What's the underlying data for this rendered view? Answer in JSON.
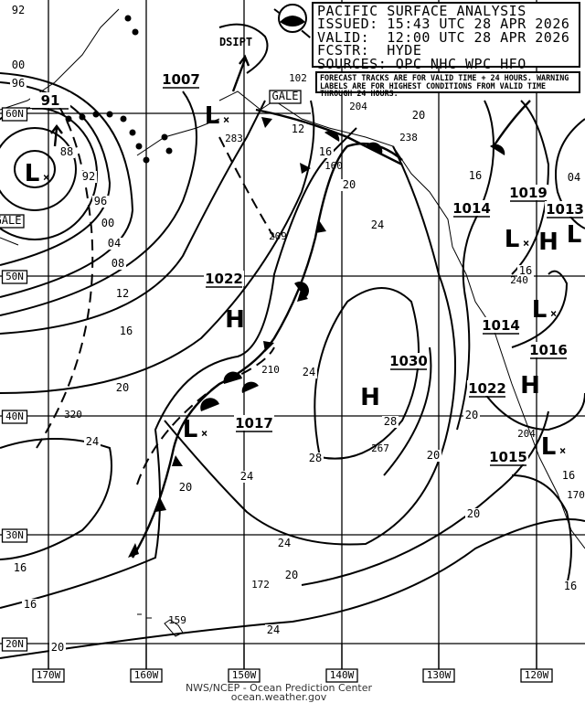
{
  "header": {
    "title": "PACIFIC SURFACE ANALYSIS",
    "issued": "ISSUED: 15:43 UTC 28 APR 2026",
    "valid": "VALID:  12:00 UTC 28 APR 2026",
    "forecaster": "FCSTR:  HYDE",
    "sources": "SOURCES: OPC NHC WPC HFO"
  },
  "note": "FORECAST TRACKS ARE FOR VALID TIME + 24 HOURS. WARNING LABELS ARE FOR HIGHEST CONDITIONS FROM VALID TIME THROUGH 24 HOURS.",
  "credit": {
    "line1": "NWS/NCEP - Ocean Prediction Center",
    "line2": "ocean.weather.gov"
  },
  "logo": "NOAA",
  "longitude_labels": [
    "170W",
    "160W",
    "150W",
    "140W",
    "130W",
    "120W"
  ],
  "latitude_labels": [
    "20N",
    "30N",
    "40N",
    "50N",
    "60N"
  ],
  "pressure_systems": [
    {
      "type": "L",
      "pressure": "91"
    },
    {
      "type": "L",
      "pressure": "1007"
    },
    {
      "type": "H",
      "pressure": "1022"
    },
    {
      "type": "L",
      "pressure": "1017"
    },
    {
      "type": "H",
      "pressure": "1030"
    },
    {
      "type": "L",
      "pressure": "1014"
    },
    {
      "type": "H",
      "pressure": "1019"
    },
    {
      "type": "L",
      "pressure": "1013"
    },
    {
      "type": "L",
      "pressure": "1014"
    },
    {
      "type": "H",
      "pressure": "1016"
    },
    {
      "type": "H",
      "pressure": "1022"
    },
    {
      "type": "L",
      "pressure": "1015"
    }
  ],
  "isobar_labels": [
    "88",
    "92",
    "96",
    "00",
    "04",
    "08",
    "12",
    "16",
    "20",
    "24",
    "20",
    "16",
    "20",
    "24",
    "28",
    "28",
    "24",
    "24",
    "20",
    "20",
    "16",
    "16",
    "20",
    "24",
    "12",
    "16",
    "20",
    "24",
    "20",
    "16",
    "00",
    "96",
    "92",
    "20",
    "16",
    "16",
    "04"
  ],
  "warnings": [
    "GALE",
    "GALE",
    "DSIPT"
  ],
  "observations": [
    "102",
    "204",
    "238",
    "160",
    "283",
    "209",
    "210",
    "320",
    "267",
    "172",
    "159",
    "240",
    "204",
    "170"
  ]
}
